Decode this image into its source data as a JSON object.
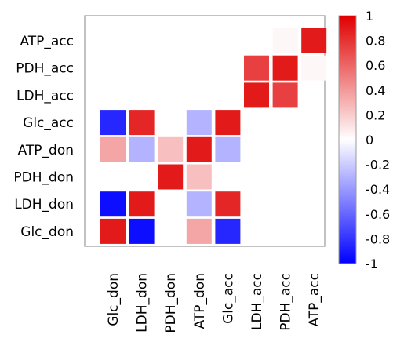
{
  "chart_data": {
    "type": "heatmap",
    "rows": [
      "ATP_acc",
      "PDH_acc",
      "LDH_acc",
      "Glc_acc",
      "ATP_don",
      "PDH_don",
      "LDH_don",
      "Glc_don"
    ],
    "columns": [
      "Glc_don",
      "LDH_don",
      "PDH_don",
      "ATP_don",
      "Glc_acc",
      "LDH_acc",
      "PDH_acc",
      "ATP_acc"
    ],
    "cells": [
      {
        "row": "ATP_acc",
        "col": "PDH_acc",
        "value": 0.03
      },
      {
        "row": "ATP_acc",
        "col": "ATP_acc",
        "value": 0.9
      },
      {
        "row": "PDH_acc",
        "col": "LDH_acc",
        "value": 0.75
      },
      {
        "row": "PDH_acc",
        "col": "PDH_acc",
        "value": 0.9
      },
      {
        "row": "PDH_acc",
        "col": "ATP_acc",
        "value": 0.03
      },
      {
        "row": "LDH_acc",
        "col": "LDH_acc",
        "value": 0.9
      },
      {
        "row": "LDH_acc",
        "col": "PDH_acc",
        "value": 0.75
      },
      {
        "row": "Glc_acc",
        "col": "Glc_don",
        "value": -0.85
      },
      {
        "row": "Glc_acc",
        "col": "LDH_don",
        "value": 0.85
      },
      {
        "row": "Glc_acc",
        "col": "ATP_don",
        "value": -0.3
      },
      {
        "row": "Glc_acc",
        "col": "Glc_acc",
        "value": 0.9
      },
      {
        "row": "ATP_don",
        "col": "Glc_don",
        "value": 0.35
      },
      {
        "row": "ATP_don",
        "col": "LDH_don",
        "value": -0.3
      },
      {
        "row": "ATP_don",
        "col": "PDH_don",
        "value": 0.25
      },
      {
        "row": "ATP_don",
        "col": "ATP_don",
        "value": 0.9
      },
      {
        "row": "ATP_don",
        "col": "Glc_acc",
        "value": -0.3
      },
      {
        "row": "PDH_don",
        "col": "PDH_don",
        "value": 0.9
      },
      {
        "row": "PDH_don",
        "col": "ATP_don",
        "value": 0.25
      },
      {
        "row": "LDH_don",
        "col": "Glc_don",
        "value": -0.95
      },
      {
        "row": "LDH_don",
        "col": "LDH_don",
        "value": 0.9
      },
      {
        "row": "LDH_don",
        "col": "ATP_don",
        "value": -0.3
      },
      {
        "row": "LDH_don",
        "col": "Glc_acc",
        "value": 0.85
      },
      {
        "row": "Glc_don",
        "col": "Glc_don",
        "value": 0.9
      },
      {
        "row": "Glc_don",
        "col": "LDH_don",
        "value": -0.95
      },
      {
        "row": "Glc_don",
        "col": "ATP_don",
        "value": 0.35
      },
      {
        "row": "Glc_don",
        "col": "Glc_acc",
        "value": -0.85
      }
    ],
    "color_scale": {
      "min": -1,
      "max": 1,
      "low_color": "#0000ff",
      "mid_color": "#ffffff",
      "high_color": "#e00000"
    },
    "colorbar_ticks": [
      "1",
      "0.8",
      "0.6",
      "0.4",
      "0.2",
      "0",
      "-0.2",
      "-0.4",
      "-0.6",
      "-0.8",
      "-1"
    ],
    "legend_placement": "right",
    "grid": false
  }
}
